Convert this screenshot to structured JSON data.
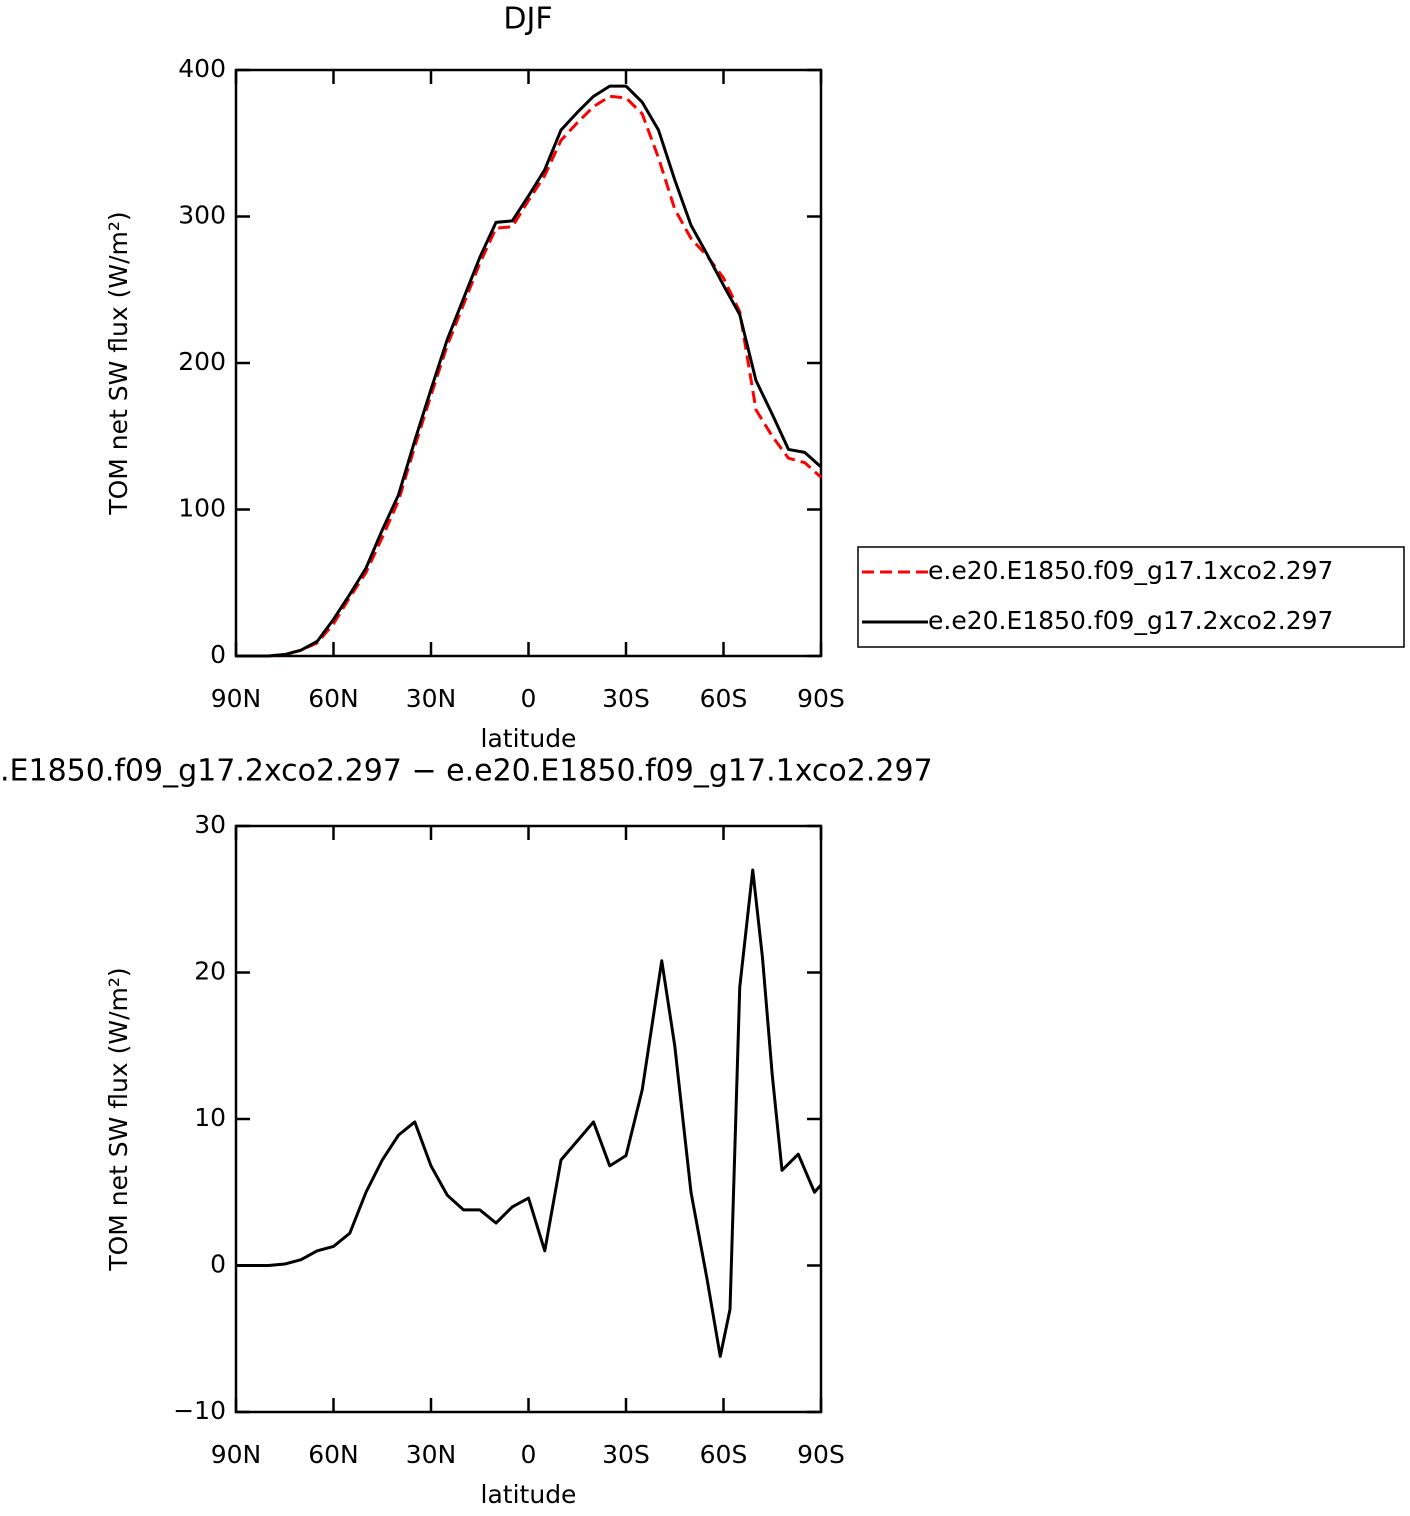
{
  "chart_data": [
    {
      "type": "line",
      "title": "DJF",
      "xlabel": "latitude",
      "ylabel": "TOM net SW flux (W/m²)",
      "x": [
        90,
        85,
        80,
        75,
        70,
        65,
        60,
        55,
        50,
        45,
        40,
        35,
        30,
        25,
        20,
        15,
        10,
        5,
        0,
        -5,
        -10,
        -15,
        -20,
        -25,
        -30,
        -35,
        -40,
        -45,
        -50,
        -55,
        -60,
        -65,
        -70,
        -75,
        -80,
        -85,
        -90
      ],
      "xlim": [
        90,
        -90
      ],
      "xticks": [
        {
          "value": 90,
          "label": "90N"
        },
        {
          "value": 60,
          "label": "60N"
        },
        {
          "value": 30,
          "label": "30N"
        },
        0,
        {
          "value": -30,
          "label": "30S"
        },
        {
          "value": -60,
          "label": "60S"
        },
        {
          "value": -90,
          "label": "90S"
        }
      ],
      "ylim": [
        0,
        400
      ],
      "yticks": [
        0,
        100,
        200,
        300,
        400
      ],
      "legend": "outside-right",
      "series": [
        {
          "name": "e.e20.E1850.f09_g17.1xco2.297",
          "color": "#ff0000",
          "linestyle": "dashed",
          "values": [
            0,
            0,
            0,
            1,
            4,
            9,
            22,
            40,
            57,
            81,
            106,
            143,
            178,
            212,
            240,
            268,
            292,
            293,
            311,
            328,
            352,
            364,
            375,
            382,
            381,
            370,
            340,
            305,
            285,
            273,
            258,
            235,
            168,
            150,
            135,
            132,
            122
          ]
        },
        {
          "name": "e.e20.E1850.f09_g17.2xco2.297",
          "color": "#000000",
          "linestyle": "solid",
          "values": [
            0,
            0,
            0,
            1,
            4,
            10,
            25,
            42,
            60,
            86,
            110,
            147,
            182,
            216,
            244,
            272,
            296,
            297,
            314,
            332,
            359,
            371,
            382,
            389,
            389,
            378,
            359,
            325,
            294,
            274,
            253,
            233,
            188,
            165,
            141,
            139,
            129
          ]
        }
      ]
    },
    {
      "type": "line",
      "title": ".E1850.f09_g17.2xco2.297 − e.e20.E1850.f09_g17.1xco2.297",
      "xlabel": "latitude",
      "ylabel": "TOM net SW flux (W/m²)",
      "x": [
        90,
        85,
        80,
        75,
        70,
        65,
        60,
        55,
        50,
        45,
        40,
        35,
        30,
        25,
        20,
        15,
        10,
        5,
        0,
        -5,
        -10,
        -15,
        -20,
        -25,
        -30,
        -35,
        -41,
        -45,
        -50,
        -55,
        -59,
        -62,
        -65,
        -69,
        -72,
        -75,
        -78,
        -83,
        -88,
        -90
      ],
      "xlim": [
        90,
        -90
      ],
      "xticks": [
        {
          "value": 90,
          "label": "90N"
        },
        {
          "value": 60,
          "label": "60N"
        },
        {
          "value": 30,
          "label": "30N"
        },
        0,
        {
          "value": -30,
          "label": "30S"
        },
        {
          "value": -60,
          "label": "60S"
        },
        {
          "value": -90,
          "label": "90S"
        }
      ],
      "ylim": [
        -10,
        30
      ],
      "yticks": [
        {
          "value": -10,
          "label": "−10"
        },
        0,
        10,
        20,
        30
      ],
      "series": [
        {
          "color": "#000000",
          "linestyle": "solid",
          "values": [
            0,
            0,
            0,
            0.1,
            0.4,
            1.0,
            1.3,
            2.2,
            5,
            7.2,
            8.9,
            9.8,
            6.8,
            4.8,
            3.8,
            3.8,
            2.9,
            4.0,
            4.6,
            1.0,
            7.2,
            8.5,
            9.8,
            6.8,
            7.5,
            12,
            20.8,
            15,
            5,
            -1,
            -6.2,
            -3,
            19,
            27,
            21,
            13,
            6.5,
            7.6,
            5,
            5.5
          ]
        }
      ]
    }
  ]
}
